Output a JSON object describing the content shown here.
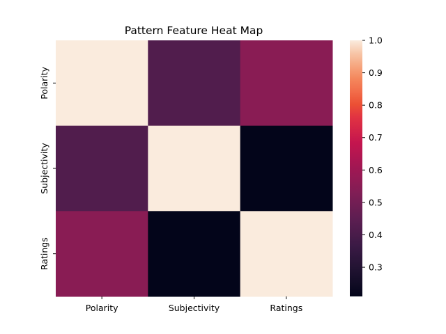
{
  "chart_data": {
    "type": "heatmap",
    "title": "Pattern Feature Heat Map",
    "rows": [
      "Polarity",
      "Subjectivity",
      "Ratings"
    ],
    "columns": [
      "Polarity",
      "Subjectivity",
      "Ratings"
    ],
    "values": [
      [
        1.0,
        0.42,
        0.55
      ],
      [
        0.42,
        1.0,
        0.21
      ],
      [
        0.55,
        0.21,
        1.0
      ]
    ],
    "colorbar": {
      "min": 0.21,
      "max": 1.0,
      "ticks": [
        "0.3",
        "0.4",
        "0.5",
        "0.6",
        "0.7",
        "0.8",
        "0.9",
        "1.0"
      ]
    },
    "colormap": {
      "name": "rocket",
      "stops": [
        {
          "v": 0.0,
          "color": "#03051a"
        },
        {
          "v": 0.1,
          "color": "#1f1230"
        },
        {
          "v": 0.2,
          "color": "#3b1a45"
        },
        {
          "v": 0.3,
          "color": "#5c1e51"
        },
        {
          "v": 0.4,
          "color": "#7f1e55"
        },
        {
          "v": 0.5,
          "color": "#a01753"
        },
        {
          "v": 0.6,
          "color": "#c4154e"
        },
        {
          "v": 0.7,
          "color": "#e13342"
        },
        {
          "v": 0.75,
          "color": "#ec5034"
        },
        {
          "v": 0.8,
          "color": "#f26d4a"
        },
        {
          "v": 0.85,
          "color": "#f4875c"
        },
        {
          "v": 0.9,
          "color": "#f6a67f"
        },
        {
          "v": 0.95,
          "color": "#f7c6a8"
        },
        {
          "v": 1.0,
          "color": "#faebdd"
        }
      ]
    }
  }
}
